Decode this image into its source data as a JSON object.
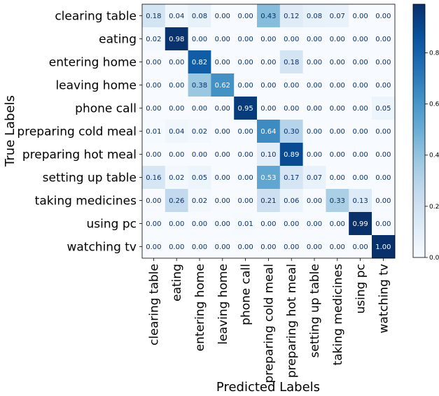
{
  "chart_data": {
    "type": "heatmap",
    "title": "",
    "xlabel": "Predicted Labels",
    "ylabel": "True Labels",
    "x_categories": [
      "clearing table",
      "eating",
      "entering home",
      "leaving home",
      "phone call",
      "preparing cold meal",
      "preparing hot meal",
      "setting up table",
      "taking medicines",
      "using pc",
      "watching tv"
    ],
    "y_categories": [
      "clearing table",
      "eating",
      "entering home",
      "leaving home",
      "phone call",
      "preparing cold meal",
      "preparing hot meal",
      "setting up table",
      "taking medicines",
      "using pc",
      "watching tv"
    ],
    "values": [
      [
        0.18,
        0.04,
        0.08,
        0.0,
        0.0,
        0.43,
        0.12,
        0.08,
        0.07,
        0.0,
        0.0
      ],
      [
        0.02,
        0.98,
        0.0,
        0.0,
        0.0,
        0.0,
        0.0,
        0.0,
        0.0,
        0.0,
        0.0
      ],
      [
        0.0,
        0.0,
        0.82,
        0.0,
        0.0,
        0.0,
        0.18,
        0.0,
        0.0,
        0.0,
        0.0
      ],
      [
        0.0,
        0.0,
        0.38,
        0.62,
        0.0,
        0.0,
        0.0,
        0.0,
        0.0,
        0.0,
        0.0
      ],
      [
        0.0,
        0.0,
        0.0,
        0.0,
        0.95,
        0.0,
        0.0,
        0.0,
        0.0,
        0.0,
        0.05
      ],
      [
        0.01,
        0.04,
        0.02,
        0.0,
        0.0,
        0.64,
        0.3,
        0.0,
        0.0,
        0.0,
        0.0
      ],
      [
        0.0,
        0.0,
        0.0,
        0.0,
        0.0,
        0.1,
        0.89,
        0.0,
        0.0,
        0.0,
        0.0
      ],
      [
        0.16,
        0.02,
        0.05,
        0.0,
        0.0,
        0.53,
        0.17,
        0.07,
        0.0,
        0.0,
        0.0
      ],
      [
        0.0,
        0.26,
        0.02,
        0.0,
        0.0,
        0.21,
        0.06,
        0.0,
        0.33,
        0.13,
        0.0
      ],
      [
        0.0,
        0.0,
        0.0,
        0.0,
        0.01,
        0.0,
        0.0,
        0.0,
        0.0,
        0.99,
        0.0
      ],
      [
        0.0,
        0.0,
        0.0,
        0.0,
        0.0,
        0.0,
        0.0,
        0.0,
        0.0,
        0.0,
        1.0
      ]
    ],
    "colormap": "Blues",
    "vmin": 0.0,
    "vmax": 0.99,
    "colorbar_ticks": [
      "0.0",
      "0.2",
      "0.4",
      "0.6",
      "0.8"
    ],
    "grid": false,
    "legend": "colorbar-right"
  }
}
